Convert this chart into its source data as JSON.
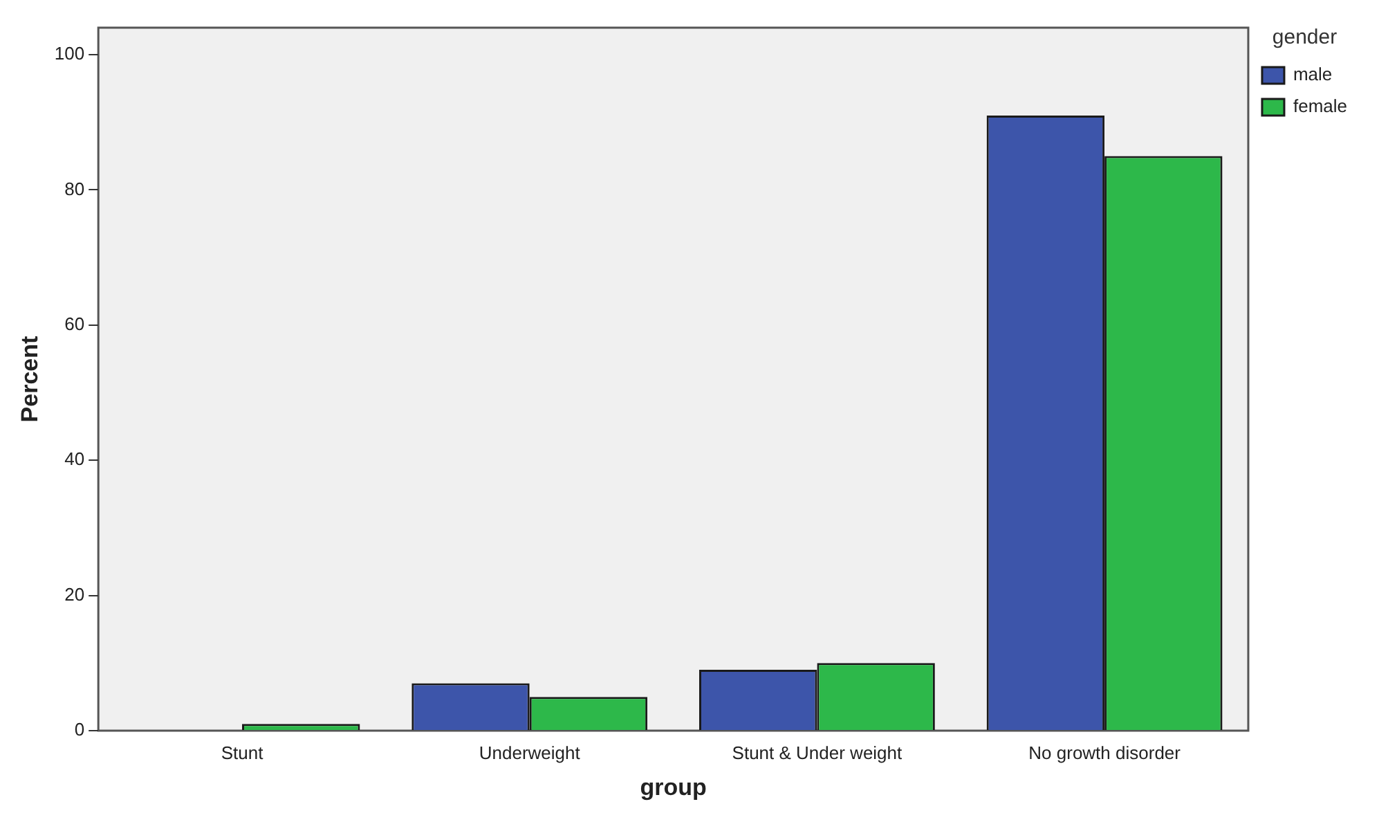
{
  "chart_data": {
    "type": "bar",
    "xlabel": "group",
    "ylabel": "Percent",
    "legend_title": "gender",
    "categories": [
      "Stunt",
      "Underweight",
      "Stunt & Under weight",
      "No growth disorder"
    ],
    "series": [
      {
        "name": "male",
        "color": "#3d55aa",
        "values": [
          0,
          7,
          9,
          91
        ]
      },
      {
        "name": "female",
        "color": "#2db84a",
        "values": [
          1,
          5,
          10,
          85
        ]
      }
    ],
    "ylim": [
      0,
      104
    ],
    "yticks": [
      0,
      20,
      40,
      60,
      80,
      100
    ],
    "grid": false,
    "legend": "top right"
  }
}
